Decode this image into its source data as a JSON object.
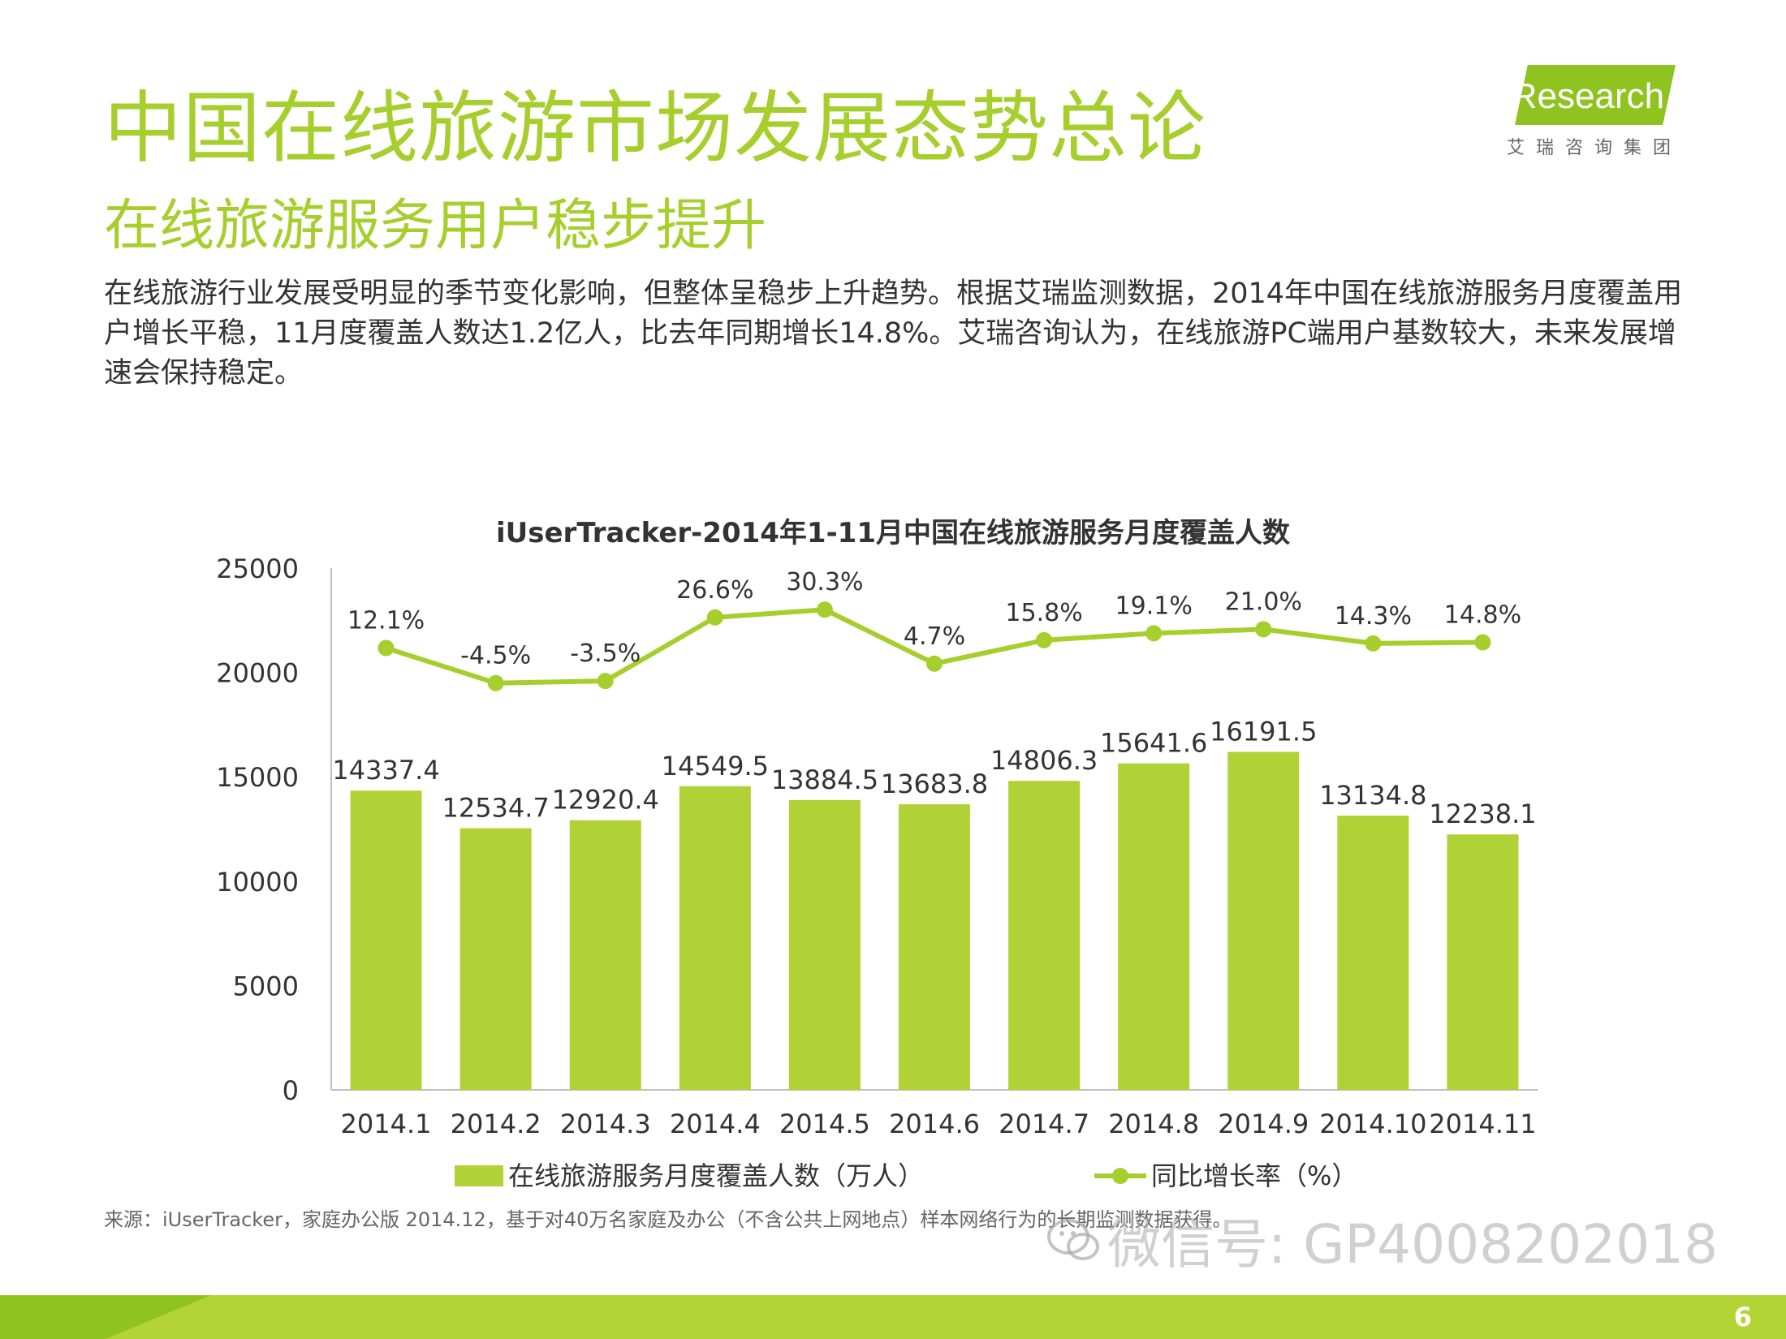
{
  "header": {
    "title": "中国在线旅游市场发展态势总论",
    "subtitle": "在线旅游服务用户稳步提升",
    "logo_text": "iResearch",
    "logo_cn": "艾瑞咨询集团"
  },
  "intro": "在线旅游行业发展受明显的季节变化影响，但整体呈稳步上升趋势。根据艾瑞监测数据，2014年中国在线旅游服务月度覆盖用户增长平稳，11月度覆盖人数达1.2亿人，比去年同期增长14.8%。艾瑞咨询认为，在线旅游PC端用户基数较大，未来发展增速会保持稳定。",
  "chart_data": {
    "type": "bar",
    "title": "iUserTracker-2014年1-11月中国在线旅游服务月度覆盖人数",
    "categories": [
      "2014.1",
      "2014.2",
      "2014.3",
      "2014.4",
      "2014.5",
      "2014.6",
      "2014.7",
      "2014.8",
      "2014.9",
      "2014.10",
      "2014.11"
    ],
    "ylim": [
      0,
      25000
    ],
    "yticks": [
      "0",
      "5000",
      "10000",
      "15000",
      "20000",
      "25000"
    ],
    "grid": false,
    "legend_position": "bottom",
    "series": [
      {
        "name": "在线旅游服务月度覆盖人数（万人）",
        "type": "bar",
        "color": "#b1d236",
        "values": [
          14337.4,
          12534.7,
          12920.4,
          14549.5,
          13884.5,
          13683.8,
          14806.3,
          15641.6,
          16191.5,
          13134.8,
          12238.1
        ],
        "labels": [
          "14337.4",
          "12534.7",
          "12920.4",
          "14549.5",
          "13884.5",
          "13683.8",
          "14806.3",
          "15641.6",
          "16191.5",
          "13134.8",
          "12238.1"
        ]
      },
      {
        "name": "同比增长率（%）",
        "type": "line",
        "color": "#a6cf2d",
        "values": [
          12.1,
          -4.5,
          -3.5,
          26.6,
          30.3,
          4.7,
          15.8,
          19.1,
          21.0,
          14.3,
          14.8
        ],
        "labels": [
          "12.1%",
          "-4.5%",
          "-3.5%",
          "26.6%",
          "30.3%",
          "4.7%",
          "15.8%",
          "19.1%",
          "21.0%",
          "14.3%",
          "14.8%"
        ]
      }
    ]
  },
  "source": "来源：iUserTracker，家庭办公版 2014.12，基于对40万名家庭及办公（不含公共上网地点）样本网络行为的长期监测数据获得。",
  "watermark": "微信号: GP4008202018",
  "page_number": "6",
  "colors": {
    "accent": "#a6cf2d",
    "bar": "#b1d236",
    "footer": "#b4d334"
  }
}
